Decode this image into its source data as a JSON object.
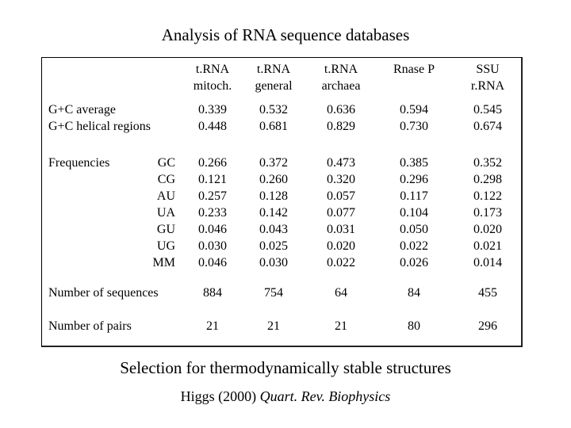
{
  "title": "Analysis of RNA sequence databases",
  "columns": [
    "t.RNA\nmitoch.",
    "t.RNA\ngeneral",
    "t.RNA\narchaea",
    "Rnase P",
    "SSU\nr.RNA"
  ],
  "gc_labels": "G+C average\nG+C helical regions",
  "gc_values": [
    "0.339\n0.448",
    "0.532\n0.681",
    "0.636\n0.829",
    "0.594\n0.730",
    "0.545\n0.674"
  ],
  "freq_label": "Frequencies",
  "pair_labels": "GC\nCG\nAU\nUA\nGU\nUG\nMM",
  "freq_values": [
    "0.266\n0.121\n0.257\n0.233\n0.046\n0.030\n0.046",
    "0.372\n0.260\n0.128\n0.142\n0.043\n0.025\n0.030",
    "0.473\n0.320\n0.057\n0.077\n0.031\n0.020\n0.022",
    "0.385\n0.296\n0.117\n0.104\n0.050\n0.022\n0.026",
    "0.352\n0.298\n0.122\n0.173\n0.020\n0.021\n0.014"
  ],
  "num_seq_label": "Number of sequences",
  "num_seq_values": [
    "884",
    "754",
    "64",
    "84",
    "455"
  ],
  "num_pairs_label": "Number of pairs",
  "num_pairs_values": [
    "21",
    "21",
    "21",
    "80",
    "296"
  ],
  "footer_heading": "Selection for thermodynamically stable structures",
  "citation_author": "Higgs (2000) ",
  "citation_journal": "Quart. Rev. Biophysics"
}
